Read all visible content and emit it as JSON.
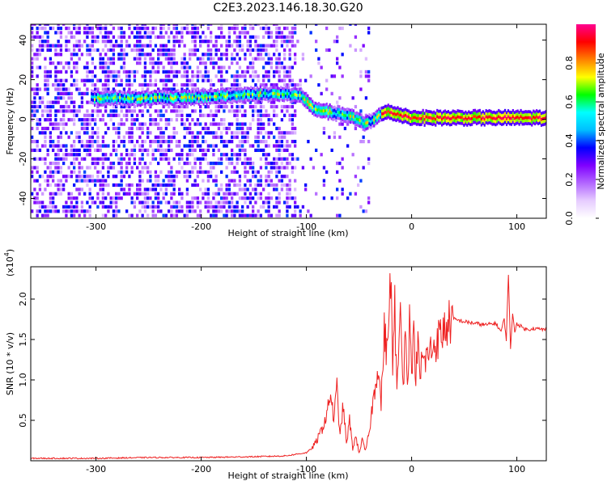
{
  "figure": {
    "title": "C2E3.2023.146.18.30.G20"
  },
  "chart_data": [
    {
      "type": "heatmap",
      "xlabel": "Height of straight line (km)",
      "ylabel": "Frequency (Hz)",
      "xlim": [
        -362,
        128
      ],
      "ylim": [
        -50,
        48
      ],
      "xticks": [
        "-300",
        "-200",
        "-100",
        "0",
        "100"
      ],
      "yticks": [
        "-40",
        "-20",
        "0",
        "20",
        "40"
      ],
      "colorbar": {
        "label": "Normalized spectral amplitude",
        "range": [
          0,
          1
        ],
        "ticks": [
          "0.0",
          "0.2",
          "0.4",
          "0.6",
          "0.8"
        ],
        "colormap": [
          "#ffffff",
          "#e6ccff",
          "#b266ff",
          "#7f00ff",
          "#0000ff",
          "#00bfff",
          "#00ffff",
          "#00ff00",
          "#ffff00",
          "#ff8000",
          "#ff0000",
          "#ff0090"
        ]
      },
      "dominant_ridge": {
        "x": [
          -300,
          -260,
          -220,
          -180,
          -150,
          -120,
          -105,
          -95,
          -80,
          -60,
          -45,
          -35,
          -25,
          -15,
          0,
          20,
          50,
          80,
          100,
          128
        ],
        "y": [
          10,
          10,
          10,
          11,
          12,
          12,
          11,
          5,
          3,
          1,
          -3,
          0,
          3,
          2,
          0,
          0,
          0,
          0,
          0,
          0
        ]
      },
      "grid": false
    },
    {
      "type": "line",
      "xlabel": "Height of straight line (km)",
      "ylabel": "SNR (10 * v/v)",
      "y_multiplier": "(x10",
      "y_multiplier_exp": "4",
      "xlim": [
        -362,
        128
      ],
      "ylim": [
        0,
        2.4
      ],
      "xticks": [
        "-300",
        "-200",
        "-100",
        "0",
        "100"
      ],
      "yticks": [
        "0.5",
        "1.0",
        "1.5",
        "2.0"
      ],
      "series": [
        {
          "color": "#ee2222",
          "x": [
            -362,
            -300,
            -250,
            -200,
            -150,
            -120,
            -110,
            -100,
            -95,
            -90,
            -85,
            -80,
            -77,
            -74,
            -71,
            -68,
            -65,
            -62,
            -59,
            -56,
            -53,
            -50,
            -47,
            -44,
            -41,
            -38,
            -35,
            -32,
            -29,
            -26,
            -23,
            -20,
            -18,
            -16,
            -14,
            -12,
            -10,
            -8,
            -6,
            -4,
            -2,
            0,
            2,
            4,
            6,
            8,
            10,
            12,
            15,
            20,
            25,
            30,
            35,
            40,
            50,
            60,
            70,
            80,
            85,
            88,
            90,
            92,
            94,
            96,
            98,
            100,
            105,
            110,
            115,
            120,
            128
          ],
          "y": [
            0.03,
            0.03,
            0.04,
            0.04,
            0.05,
            0.06,
            0.08,
            0.1,
            0.15,
            0.25,
            0.4,
            0.6,
            0.85,
            0.5,
            0.9,
            0.3,
            0.7,
            0.2,
            0.5,
            0.15,
            0.3,
            0.1,
            0.25,
            0.12,
            0.3,
            0.6,
            0.9,
            1.2,
            0.7,
            1.6,
            1.3,
            2.4,
            1.1,
            1.9,
            0.8,
            1.5,
            2.0,
            0.9,
            1.6,
            1.0,
            1.7,
            1.2,
            1.5,
            1.1,
            1.4,
            1.0,
            1.3,
            1.2,
            1.3,
            1.4,
            1.5,
            1.6,
            1.7,
            1.75,
            1.72,
            1.7,
            1.68,
            1.7,
            1.6,
            1.75,
            1.5,
            2.3,
            1.4,
            1.8,
            1.6,
            1.7,
            1.65,
            1.62,
            1.64,
            1.63,
            1.62
          ]
        }
      ],
      "grid": false
    }
  ]
}
